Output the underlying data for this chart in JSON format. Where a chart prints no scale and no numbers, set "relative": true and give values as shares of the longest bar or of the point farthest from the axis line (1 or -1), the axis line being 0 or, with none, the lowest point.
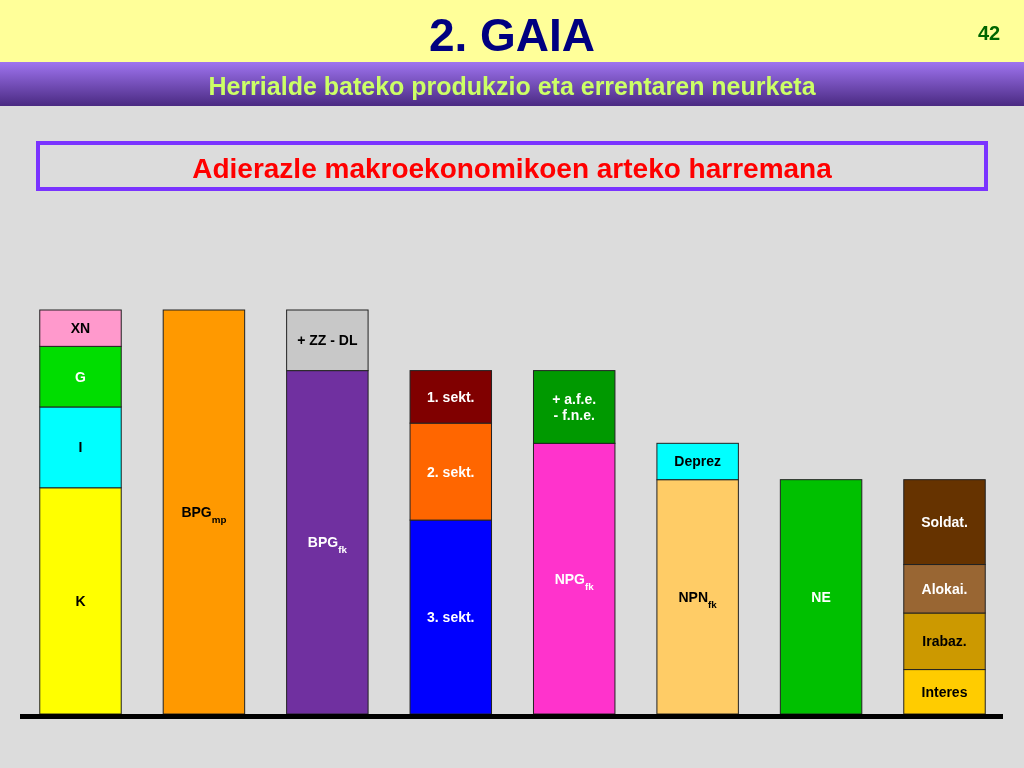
{
  "chart_data": {
    "type": "bar",
    "title": "2. GAIA",
    "subtitle": "Herrialde bateko produkzio eta errentaren neurketa",
    "annotations": [
      "Adierazle makroekonomikoen arteko harremana",
      "42"
    ],
    "categories": [
      null,
      null,
      null,
      null,
      null,
      null,
      null,
      null
    ],
    "relative": true,
    "stacked": true,
    "series": [
      {
        "name": "K",
        "color": "#ffff00",
        "values": [
          0.56,
          null,
          null,
          null,
          null,
          null,
          null,
          null
        ]
      },
      {
        "name": "I",
        "color": "#00ffff",
        "values": [
          0.2,
          null,
          null,
          null,
          null,
          null,
          null,
          null
        ]
      },
      {
        "name": "G",
        "color": "#00dd00",
        "values": [
          0.15,
          null,
          null,
          null,
          null,
          null,
          null,
          null
        ]
      },
      {
        "name": "XN",
        "color": "#ff99cc",
        "values": [
          0.09,
          null,
          null,
          null,
          null,
          null,
          null,
          null
        ]
      },
      {
        "name": "BPG$_{mp}$",
        "color": "#ff9900",
        "values": [
          null,
          1.0,
          null,
          null,
          null,
          null,
          null,
          null
        ]
      },
      {
        "name": "BPG$_{fk}$",
        "color": "#7030a0",
        "values": [
          null,
          null,
          0.85,
          null,
          null,
          null,
          null,
          null
        ]
      },
      {
        "name": "+ ZZ - DL",
        "color": "#c8c8c8",
        "values": [
          null,
          null,
          0.15,
          null,
          null,
          null,
          null,
          null
        ]
      },
      {
        "name": "3. sekt.",
        "color": "#0000ff",
        "values": [
          null,
          null,
          null,
          0.48,
          null,
          null,
          null,
          null
        ]
      },
      {
        "name": "2. sekt.",
        "color": "#ff6600",
        "values": [
          null,
          null,
          null,
          0.24,
          null,
          null,
          null,
          null
        ]
      },
      {
        "name": "1. sekt.",
        "color": "#800000",
        "values": [
          null,
          null,
          null,
          0.13,
          null,
          null,
          null,
          null
        ]
      },
      {
        "name": "NPG$_{fk}$",
        "color": "#ff33cc",
        "values": [
          null,
          null,
          null,
          null,
          0.67,
          null,
          null,
          null
        ]
      },
      {
        "name": "+ a.f.e.\n- f.n.e.",
        "color": "#009900",
        "values": [
          null,
          null,
          null,
          null,
          0.18,
          null,
          null,
          null
        ]
      },
      {
        "name": "NPN$_{fk}$",
        "color": "#ffcc66",
        "values": [
          null,
          null,
          null,
          null,
          null,
          0.58,
          null,
          null
        ]
      },
      {
        "name": "Deprez",
        "color": "#00ffff",
        "values": [
          null,
          null,
          null,
          null,
          null,
          0.09,
          null,
          null
        ]
      },
      {
        "name": "NE",
        "color": "#00c000",
        "values": [
          null,
          null,
          null,
          null,
          null,
          null,
          0.58,
          null
        ]
      },
      {
        "name": "Interes",
        "color": "#ffcc00",
        "values": [
          null,
          null,
          null,
          null,
          null,
          null,
          null,
          0.11
        ]
      },
      {
        "name": "Irabaz.",
        "color": "#cc9900",
        "values": [
          null,
          null,
          null,
          null,
          null,
          null,
          null,
          0.14
        ]
      },
      {
        "name": "Alokai.",
        "color": "#996633",
        "values": [
          null,
          null,
          null,
          null,
          null,
          null,
          null,
          0.12
        ]
      },
      {
        "name": "Soldat.",
        "color": "#663300",
        "values": [
          null,
          null,
          null,
          null,
          null,
          null,
          null,
          0.21
        ]
      }
    ]
  }
}
